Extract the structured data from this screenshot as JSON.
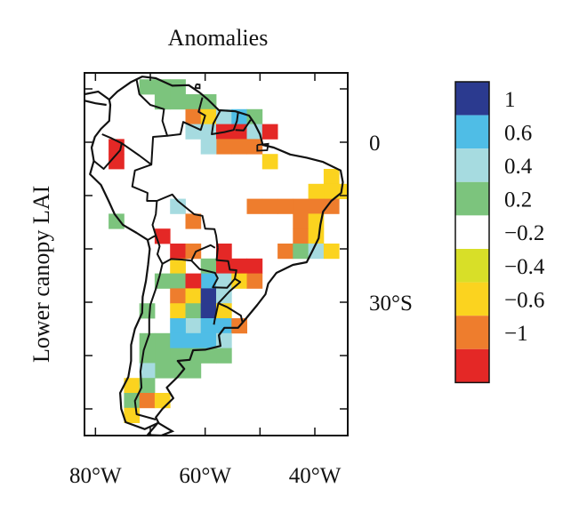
{
  "map": {
    "title": "Anomalies",
    "ylabel": "Lower canopy LAI",
    "lon_ticks": [
      {
        "lon": -80,
        "label": "80°W"
      },
      {
        "lon": -60,
        "label": "60°W"
      },
      {
        "lon": -40,
        "label": "40°W"
      }
    ],
    "lat_ticks": [
      {
        "lat": 0,
        "label": "0"
      },
      {
        "lat": -30,
        "label": "30°S"
      }
    ],
    "lon_range": [
      -82,
      -34
    ],
    "lat_range": [
      -55,
      13
    ],
    "cell_size_deg": 2.8,
    "cells": [
      {
        "lon": -70.6,
        "lat": 10.4,
        "v": 0.3
      },
      {
        "lon": -67.8,
        "lat": 10.4,
        "v": 0.3
      },
      {
        "lon": -65.0,
        "lat": 10.4,
        "v": 0.3
      },
      {
        "lon": -67.8,
        "lat": 7.6,
        "v": 0.3
      },
      {
        "lon": -65.0,
        "lat": 7.6,
        "v": 0.3
      },
      {
        "lon": -62.2,
        "lat": 7.6,
        "v": 0.3
      },
      {
        "lon": -62.2,
        "lat": 4.8,
        "v": -0.8
      },
      {
        "lon": -59.4,
        "lat": 7.6,
        "v": 0.3
      },
      {
        "lon": -62.2,
        "lat": 2.0,
        "v": 0.5
      },
      {
        "lon": -59.4,
        "lat": 4.8,
        "v": -0.5
      },
      {
        "lon": -56.6,
        "lat": 4.8,
        "v": 0.5
      },
      {
        "lon": -53.8,
        "lat": 4.8,
        "v": 0.8
      },
      {
        "lon": -59.4,
        "lat": 2.0,
        "v": 0.5
      },
      {
        "lon": -53.8,
        "lat": 2.0,
        "v": -1.2
      },
      {
        "lon": -51.0,
        "lat": 4.8,
        "v": 0.3
      },
      {
        "lon": -51.0,
        "lat": 2.0,
        "v": 0.5
      },
      {
        "lon": -48.2,
        "lat": 2.0,
        "v": -1.2
      },
      {
        "lon": -56.6,
        "lat": 2.0,
        "v": -1.2
      },
      {
        "lon": -56.6,
        "lat": -0.8,
        "v": -0.8
      },
      {
        "lon": -53.8,
        "lat": -0.8,
        "v": -0.8
      },
      {
        "lon": -51.0,
        "lat": -0.8,
        "v": -0.8
      },
      {
        "lon": -59.4,
        "lat": -0.8,
        "v": 0.5
      },
      {
        "lon": -48.2,
        "lat": -3.6,
        "v": -0.5
      },
      {
        "lon": -76.2,
        "lat": -0.8,
        "v": -1.2
      },
      {
        "lon": -76.2,
        "lat": -3.6,
        "v": -1.2
      },
      {
        "lon": -37.0,
        "lat": -6.4,
        "v": -0.5
      },
      {
        "lon": -37.0,
        "lat": -9.2,
        "v": -0.5
      },
      {
        "lon": -39.8,
        "lat": -9.2,
        "v": -0.5
      },
      {
        "lon": -34.2,
        "lat": -9.2,
        "v": -0.5
      },
      {
        "lon": -39.8,
        "lat": -12.0,
        "v": -0.8
      },
      {
        "lon": -37.0,
        "lat": -12.0,
        "v": -0.8
      },
      {
        "lon": -42.6,
        "lat": -12.0,
        "v": -1.0
      },
      {
        "lon": -45.4,
        "lat": -12.0,
        "v": -1.0
      },
      {
        "lon": -48.2,
        "lat": -12.0,
        "v": -1.0
      },
      {
        "lon": -51.0,
        "lat": -12.0,
        "v": -1.0
      },
      {
        "lon": -42.6,
        "lat": -14.8,
        "v": -1.0
      },
      {
        "lon": -39.8,
        "lat": -14.8,
        "v": -0.5
      },
      {
        "lon": -42.6,
        "lat": -17.6,
        "v": -0.8
      },
      {
        "lon": -39.8,
        "lat": -17.6,
        "v": -0.5
      },
      {
        "lon": -45.4,
        "lat": -20.4,
        "v": -1.0
      },
      {
        "lon": -42.6,
        "lat": -20.4,
        "v": 0.3
      },
      {
        "lon": -39.8,
        "lat": -20.4,
        "v": 0.5
      },
      {
        "lon": -37.0,
        "lat": -20.4,
        "v": -0.5
      },
      {
        "lon": -65.0,
        "lat": -12.0,
        "v": 0.5
      },
      {
        "lon": -62.2,
        "lat": -14.8,
        "v": -0.8
      },
      {
        "lon": -76.2,
        "lat": -14.8,
        "v": 0.3
      },
      {
        "lon": -67.8,
        "lat": -17.6,
        "v": -1.2
      },
      {
        "lon": -65.0,
        "lat": -20.4,
        "v": -1.2
      },
      {
        "lon": -62.2,
        "lat": -20.4,
        "v": -0.8
      },
      {
        "lon": -56.6,
        "lat": -20.4,
        "v": -1.2
      },
      {
        "lon": -65.0,
        "lat": -23.2,
        "v": -0.5
      },
      {
        "lon": -59.4,
        "lat": -23.2,
        "v": 0.3
      },
      {
        "lon": -53.8,
        "lat": -23.2,
        "v": -1.2
      },
      {
        "lon": -51.0,
        "lat": -23.2,
        "v": -1.2
      },
      {
        "lon": -56.6,
        "lat": -23.2,
        "v": -1.2
      },
      {
        "lon": -67.8,
        "lat": -26.0,
        "v": 0.3
      },
      {
        "lon": -65.0,
        "lat": -26.0,
        "v": 0.3
      },
      {
        "lon": -59.4,
        "lat": -26.0,
        "v": 0.8
      },
      {
        "lon": -56.6,
        "lat": -26.0,
        "v": 0.5
      },
      {
        "lon": -53.8,
        "lat": -26.0,
        "v": -0.5
      },
      {
        "lon": -51.0,
        "lat": -26.0,
        "v": -0.8
      },
      {
        "lon": -62.2,
        "lat": -26.0,
        "v": -1.2
      },
      {
        "lon": -65.0,
        "lat": -28.8,
        "v": -0.8
      },
      {
        "lon": -62.2,
        "lat": -28.8,
        "v": -0.5
      },
      {
        "lon": -59.4,
        "lat": -28.8,
        "v": 1.2
      },
      {
        "lon": -56.6,
        "lat": -28.8,
        "v": 0.5
      },
      {
        "lon": -65.0,
        "lat": -31.6,
        "v": -0.5
      },
      {
        "lon": -62.2,
        "lat": -31.6,
        "v": 0.3
      },
      {
        "lon": -59.4,
        "lat": -31.6,
        "v": 1.2
      },
      {
        "lon": -56.6,
        "lat": -31.6,
        "v": -0.5
      },
      {
        "lon": -70.6,
        "lat": -31.6,
        "v": 0.3
      },
      {
        "lon": -62.2,
        "lat": -34.4,
        "v": 0.5
      },
      {
        "lon": -59.4,
        "lat": -34.4,
        "v": 0.8
      },
      {
        "lon": -56.6,
        "lat": -34.4,
        "v": 0.8
      },
      {
        "lon": -53.8,
        "lat": -34.4,
        "v": -1.0
      },
      {
        "lon": -65.0,
        "lat": -34.4,
        "v": 0.8
      },
      {
        "lon": -67.8,
        "lat": -37.2,
        "v": 0.3
      },
      {
        "lon": -65.0,
        "lat": -37.2,
        "v": 0.8
      },
      {
        "lon": -62.2,
        "lat": -37.2,
        "v": 0.8
      },
      {
        "lon": -59.4,
        "lat": -37.2,
        "v": 0.8
      },
      {
        "lon": -56.6,
        "lat": -37.2,
        "v": 0.5
      },
      {
        "lon": -70.6,
        "lat": -37.2,
        "v": 0.3
      },
      {
        "lon": -67.8,
        "lat": -40.0,
        "v": 0.3
      },
      {
        "lon": -65.0,
        "lat": -40.0,
        "v": 0.3
      },
      {
        "lon": -62.2,
        "lat": -40.0,
        "v": 0.3
      },
      {
        "lon": -59.4,
        "lat": -40.0,
        "v": 0.3
      },
      {
        "lon": -56.6,
        "lat": -40.0,
        "v": 0.3
      },
      {
        "lon": -70.6,
        "lat": -40.0,
        "v": 0.3
      },
      {
        "lon": -67.8,
        "lat": -42.8,
        "v": 0.3
      },
      {
        "lon": -65.0,
        "lat": -42.8,
        "v": 0.3
      },
      {
        "lon": -62.2,
        "lat": -42.8,
        "v": 0.3
      },
      {
        "lon": -70.6,
        "lat": -42.8,
        "v": 0.5
      },
      {
        "lon": -73.4,
        "lat": -45.6,
        "v": -0.5
      },
      {
        "lon": -70.6,
        "lat": -45.6,
        "v": 0.3
      },
      {
        "lon": -73.4,
        "lat": -48.4,
        "v": 0.3
      },
      {
        "lon": -70.6,
        "lat": -48.4,
        "v": -0.8
      },
      {
        "lon": -67.8,
        "lat": -48.4,
        "v": -0.5
      },
      {
        "lon": -73.4,
        "lat": -51.2,
        "v": -0.5
      }
    ],
    "colorbar": {
      "colors": [
        "#2b3a8f",
        "#4fbde6",
        "#a6dbe0",
        "#7cc47d",
        "#ffffff",
        "#d8df28",
        "#fbd31f",
        "#ee7d2d",
        "#e42826"
      ],
      "bounds": [
        1.0,
        0.6,
        0.4,
        0.2,
        -0.2,
        -0.4,
        -0.6,
        -1.0
      ],
      "labels": [
        "1",
        "0.6",
        "0.4",
        "0.2",
        "−0.2",
        "−0.4",
        "−0.6",
        "−1"
      ]
    }
  }
}
